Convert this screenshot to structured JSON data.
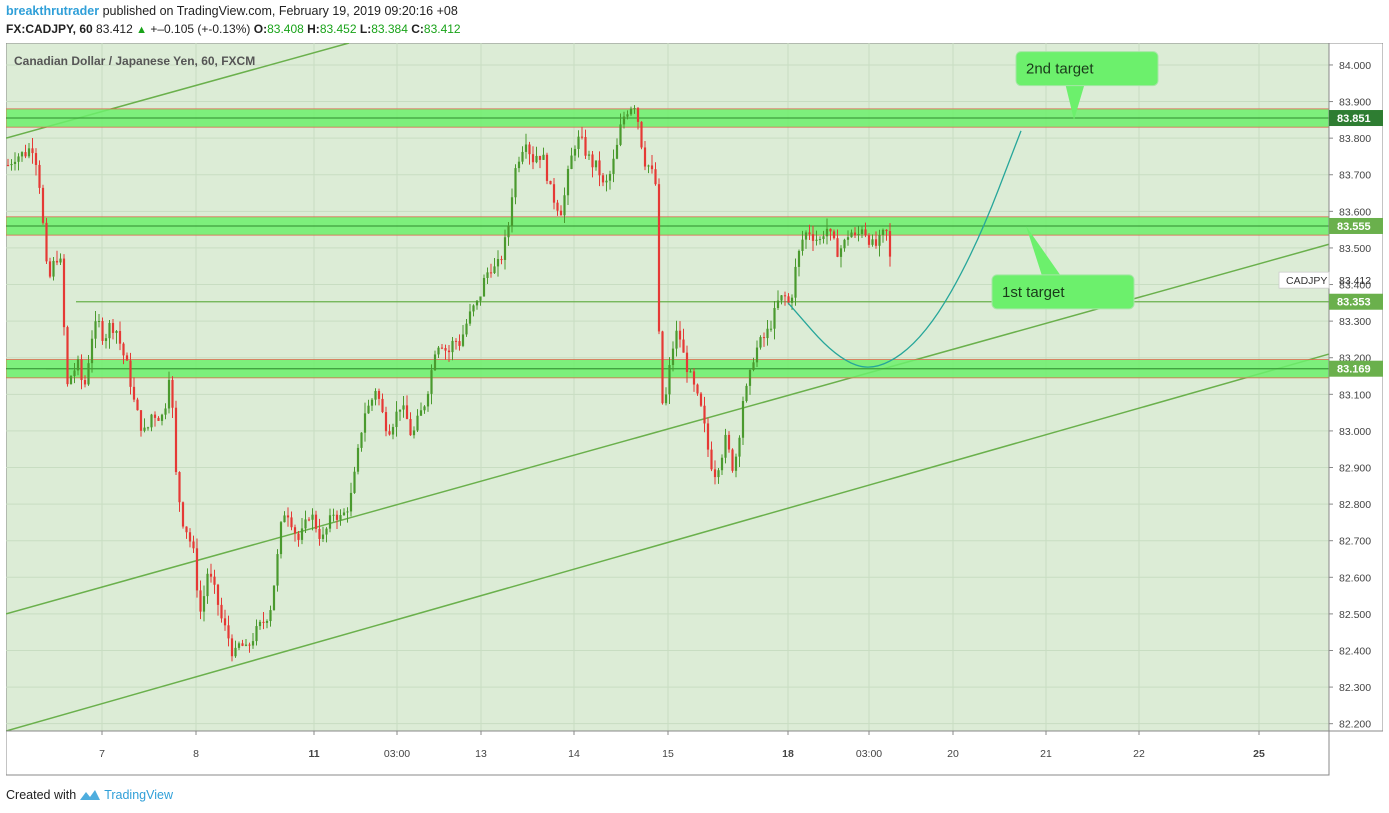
{
  "header": {
    "user": "breakthrutrader",
    "published_text": "published on TradingView.com, February 19, 2019 09:20:16 +08",
    "symbol": "FX:CADJPY, 60",
    "last": "83.412",
    "change": "+–0.105 (+-0.13%)",
    "o_label": "O:",
    "o": "83.408",
    "h_label": "H:",
    "h": "83.452",
    "l_label": "L:",
    "l": "83.384",
    "c_label": "C:",
    "c": "83.412"
  },
  "footer": {
    "created_with": "Created with",
    "brand": "TradingView"
  },
  "colors": {
    "background": "#dcecd6",
    "zone_fill": "#6cf06c",
    "zone_edge": "#d96a4a",
    "trendline": "#6ab04c",
    "bull": "#4a9a2e",
    "bear": "#e53935",
    "curve": "#26a69a",
    "callout": "#6cf06c"
  },
  "chart_data": {
    "type": "candlestick",
    "title": "Canadian Dollar / Japanese Yen, 60, FXCM",
    "ylim": [
      82.18,
      84.06
    ],
    "y_ticks": [
      "84.000",
      "83.900",
      "83.800",
      "83.700",
      "83.600",
      "83.500",
      "83.400",
      "83.300",
      "83.200",
      "83.100",
      "83.000",
      "82.900",
      "82.800",
      "82.700",
      "82.600",
      "82.500",
      "82.400",
      "82.300",
      "82.200"
    ],
    "x_ticks": [
      {
        "label": "7",
        "bold": false
      },
      {
        "label": "8",
        "bold": false
      },
      {
        "label": "11",
        "bold": true
      },
      {
        "label": "03:00",
        "bold": false
      },
      {
        "label": "13",
        "bold": false
      },
      {
        "label": "14",
        "bold": false
      },
      {
        "label": "15",
        "bold": false
      },
      {
        "label": "18",
        "bold": true
      },
      {
        "label": "03:00",
        "bold": false
      },
      {
        "label": "20",
        "bold": false
      },
      {
        "label": "21",
        "bold": false
      },
      {
        "label": "22",
        "bold": false
      },
      {
        "label": "25",
        "bold": true
      }
    ],
    "price_path": [
      [
        0,
        83.72
      ],
      [
        9,
        83.75
      ],
      [
        20,
        83.76
      ],
      [
        26,
        83.78
      ],
      [
        32,
        83.72
      ],
      [
        36,
        83.6
      ],
      [
        40,
        83.45
      ],
      [
        44,
        83.42
      ],
      [
        50,
        83.48
      ],
      [
        56,
        83.45
      ],
      [
        60,
        83.11
      ],
      [
        66,
        83.16
      ],
      [
        72,
        83.18
      ],
      [
        78,
        83.11
      ],
      [
        86,
        83.26
      ],
      [
        92,
        83.3
      ],
      [
        98,
        83.25
      ],
      [
        104,
        83.29
      ],
      [
        110,
        83.28
      ],
      [
        116,
        83.22
      ],
      [
        122,
        83.17
      ],
      [
        128,
        83.08
      ],
      [
        134,
        83.02
      ],
      [
        140,
        82.99
      ],
      [
        146,
        83.05
      ],
      [
        152,
        83.04
      ],
      [
        158,
        83.04
      ],
      [
        164,
        83.18
      ],
      [
        170,
        82.88
      ],
      [
        176,
        82.76
      ],
      [
        182,
        82.72
      ],
      [
        188,
        82.66
      ],
      [
        192,
        82.55
      ],
      [
        196,
        82.48
      ],
      [
        200,
        82.62
      ],
      [
        204,
        82.6
      ],
      [
        210,
        82.55
      ],
      [
        216,
        82.48
      ],
      [
        222,
        82.44
      ],
      [
        228,
        82.38
      ],
      [
        234,
        82.42
      ],
      [
        240,
        82.4
      ],
      [
        246,
        82.43
      ],
      [
        252,
        82.46
      ],
      [
        258,
        82.48
      ],
      [
        264,
        82.51
      ],
      [
        270,
        82.62
      ],
      [
        276,
        82.76
      ],
      [
        280,
        82.79
      ],
      [
        286,
        82.75
      ],
      [
        292,
        82.7
      ],
      [
        298,
        82.73
      ],
      [
        304,
        82.78
      ],
      [
        310,
        82.74
      ],
      [
        316,
        82.7
      ],
      [
        322,
        82.74
      ],
      [
        328,
        82.78
      ],
      [
        334,
        82.76
      ],
      [
        340,
        82.78
      ],
      [
        346,
        82.83
      ],
      [
        352,
        82.94
      ],
      [
        358,
        83.05
      ],
      [
        364,
        83.07
      ],
      [
        370,
        83.12
      ],
      [
        376,
        83.05
      ],
      [
        382,
        83.0
      ],
      [
        388,
        83.03
      ],
      [
        394,
        83.07
      ],
      [
        400,
        83.04
      ],
      [
        406,
        82.98
      ],
      [
        412,
        83.03
      ],
      [
        418,
        83.07
      ],
      [
        424,
        83.14
      ],
      [
        430,
        83.24
      ],
      [
        436,
        83.24
      ],
      [
        442,
        83.21
      ],
      [
        448,
        83.25
      ],
      [
        454,
        83.24
      ],
      [
        460,
        83.29
      ],
      [
        466,
        83.33
      ],
      [
        472,
        83.35
      ],
      [
        478,
        83.41
      ],
      [
        484,
        83.45
      ],
      [
        490,
        83.44
      ],
      [
        496,
        83.48
      ],
      [
        502,
        83.55
      ],
      [
        508,
        83.7
      ],
      [
        514,
        83.76
      ],
      [
        520,
        83.8
      ],
      [
        526,
        83.74
      ],
      [
        532,
        83.76
      ],
      [
        538,
        83.74
      ],
      [
        544,
        83.66
      ],
      [
        550,
        83.62
      ],
      [
        556,
        83.6
      ],
      [
        562,
        83.7
      ],
      [
        568,
        83.78
      ],
      [
        574,
        83.8
      ],
      [
        580,
        83.76
      ],
      [
        586,
        83.73
      ],
      [
        592,
        83.72
      ],
      [
        598,
        83.66
      ],
      [
        604,
        83.7
      ],
      [
        610,
        83.76
      ],
      [
        616,
        83.85
      ],
      [
        622,
        83.88
      ],
      [
        628,
        83.9
      ],
      [
        632,
        83.85
      ],
      [
        638,
        83.74
      ],
      [
        644,
        83.72
      ],
      [
        650,
        83.67
      ],
      [
        654,
        83.12
      ],
      [
        658,
        83.05
      ],
      [
        662,
        83.14
      ],
      [
        666,
        83.22
      ],
      [
        672,
        83.28
      ],
      [
        678,
        83.2
      ],
      [
        684,
        83.15
      ],
      [
        690,
        83.1
      ],
      [
        696,
        83.05
      ],
      [
        702,
        82.95
      ],
      [
        708,
        82.88
      ],
      [
        714,
        82.92
      ],
      [
        720,
        82.98
      ],
      [
        726,
        82.9
      ],
      [
        732,
        82.95
      ],
      [
        736,
        83.08
      ],
      [
        742,
        83.12
      ],
      [
        748,
        83.21
      ],
      [
        754,
        83.24
      ],
      [
        760,
        83.26
      ],
      [
        766,
        83.3
      ],
      [
        772,
        83.35
      ],
      [
        778,
        83.37
      ],
      [
        784,
        83.34
      ],
      [
        790,
        83.45
      ],
      [
        796,
        83.52
      ],
      [
        802,
        83.55
      ],
      [
        808,
        83.53
      ],
      [
        814,
        83.52
      ],
      [
        820,
        83.56
      ],
      [
        826,
        83.52
      ],
      [
        832,
        83.49
      ],
      [
        838,
        83.51
      ],
      [
        844,
        83.55
      ],
      [
        850,
        83.52
      ],
      [
        856,
        83.56
      ],
      [
        862,
        83.53
      ],
      [
        868,
        83.5
      ],
      [
        874,
        83.52
      ],
      [
        880,
        83.55
      ],
      [
        885,
        83.45
      ],
      [
        890,
        83.41
      ]
    ],
    "zones": [
      {
        "label": "83.851",
        "lo": 83.83,
        "hi": 83.88,
        "dark": true
      },
      {
        "label": "83.555",
        "lo": 83.535,
        "hi": 83.585,
        "dark": false
      },
      {
        "label": "83.169",
        "lo": 83.145,
        "hi": 83.195,
        "dark": false
      }
    ],
    "level_line": {
      "label": "83.353",
      "value": 83.353
    },
    "price_tag": {
      "symbol": "CADJPY",
      "value": "83.412",
      "price": 83.412
    },
    "callouts": [
      {
        "text": "2nd target",
        "box_x": 1010,
        "box_price": 83.99,
        "tip_x": 1068,
        "tip_price": 83.85
      },
      {
        "text": "1st target",
        "box_x": 986,
        "box_price": 83.38,
        "tip_x": 1020,
        "tip_price": 83.56
      }
    ],
    "trendlines": [
      {
        "x1": 0,
        "p1": 83.8,
        "x2": 343,
        "p2": 84.06
      },
      {
        "x1": 0,
        "p1": 82.5,
        "x2": 1323,
        "p2": 83.51
      },
      {
        "x1": 0,
        "p1": 82.18,
        "x2": 1323,
        "p2": 83.21
      }
    ],
    "projection": [
      [
        782,
        83.35
      ],
      [
        830,
        83.2
      ],
      [
        870,
        83.16
      ],
      [
        920,
        83.26
      ],
      [
        970,
        83.5
      ],
      [
        1015,
        83.82
      ]
    ]
  }
}
